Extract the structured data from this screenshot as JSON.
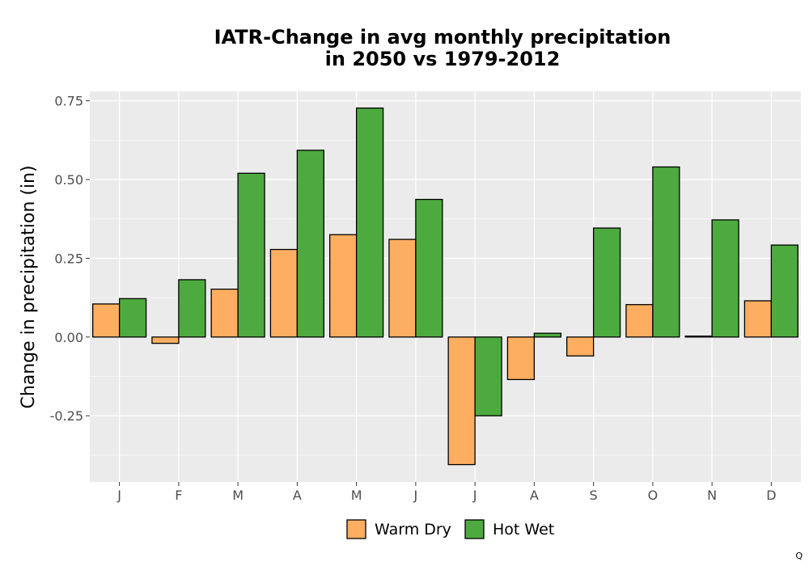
{
  "chart_data": {
    "type": "bar",
    "title": [
      "IATR-Change in avg monthly precipitation",
      "in 2050 vs 1979-2012"
    ],
    "xlabel": "",
    "ylabel": "Change in precipitation (in)",
    "categories": [
      "J",
      "F",
      "M",
      "A",
      "M",
      "J",
      "J",
      "A",
      "S",
      "O",
      "N",
      "D"
    ],
    "series": [
      {
        "name": "Warm Dry",
        "color": "#fdae61",
        "values": [
          0.105,
          -0.02,
          0.152,
          0.278,
          0.325,
          0.31,
          -0.405,
          -0.135,
          -0.06,
          0.103,
          0.003,
          0.115
        ]
      },
      {
        "name": "Hot Wet",
        "color": "#4daa3f",
        "values": [
          0.122,
          0.182,
          0.52,
          0.593,
          0.727,
          0.437,
          -0.25,
          0.012,
          0.346,
          0.54,
          0.372,
          0.292
        ]
      }
    ],
    "ylim": [
      -0.46,
      0.78
    ],
    "yticks": [
      -0.25,
      0.0,
      0.25,
      0.5,
      0.75
    ],
    "ytick_labels": [
      "-0.25",
      "0.00",
      "0.25",
      "0.50",
      "0.75"
    ],
    "grid": true,
    "panel_background": "#ebebeb",
    "legend_position": "bottom"
  },
  "corner_mark": "Q"
}
